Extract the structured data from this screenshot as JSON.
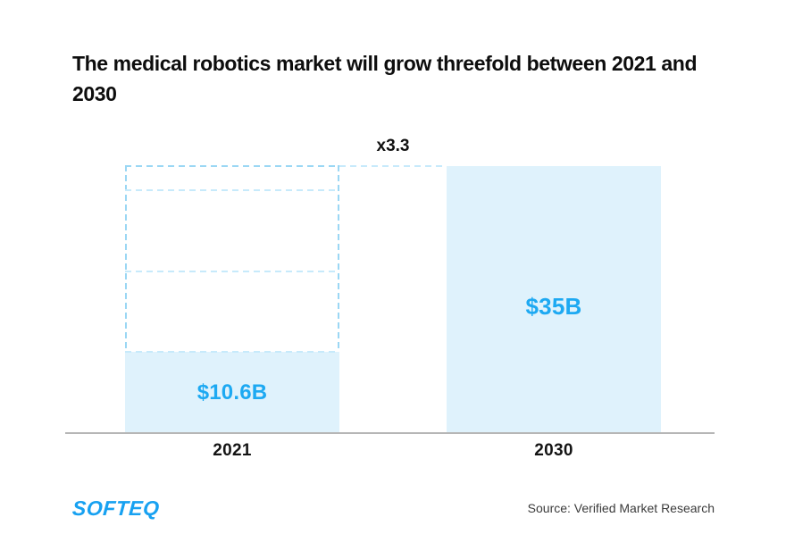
{
  "title": "The medical robotics market will grow threefold between 2021 and 2030",
  "chart_data": {
    "type": "bar",
    "title": "The medical robotics market will grow threefold between 2021 and 2030",
    "categories": [
      "2021",
      "2030"
    ],
    "values": [
      10.6,
      35
    ],
    "value_labels": [
      "$10.6B",
      "$35B"
    ],
    "multiplier_label": "x3.3",
    "ylim": [
      0,
      35
    ],
    "grid": false,
    "legend": false,
    "ghost_projection": {
      "description": "dashed outline above 2021 bar up to 2030 level, divided into segments of the 2021 value",
      "segment_unit": 10.6,
      "top_value": 35
    }
  },
  "footer": {
    "logo": "SOFTEQ",
    "source": "Source: Verified Market Research"
  },
  "colors": {
    "accent_blue": "#1da9f2",
    "logo_blue": "#17a1f1",
    "bar_fill": "#dff2fc",
    "dash_outer": "#9bd7f4",
    "dash_inner": "#c7eafb",
    "axis_line": "#b6b6b6",
    "title_text": "#0d0d0d",
    "source_text": "#3b3b3b"
  }
}
